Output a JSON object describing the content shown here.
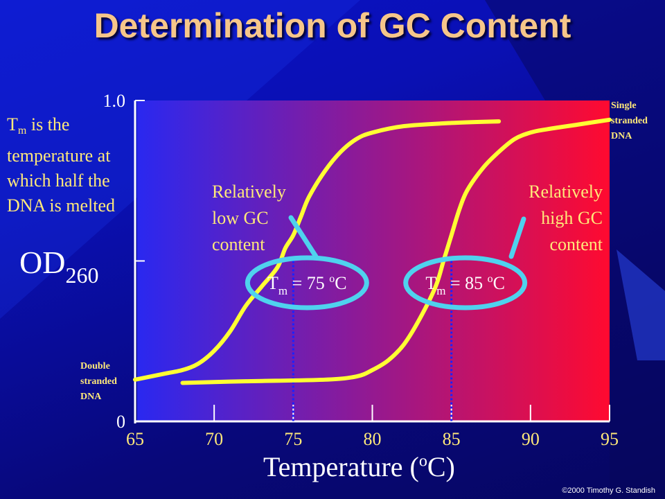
{
  "slide": {
    "title": "Determination of GC Content",
    "side_note": {
      "t": "T",
      "sub": "m",
      "rest": " is the temperature at which half the DNA is melted"
    },
    "double_label": [
      "Double",
      "stranded",
      "DNA"
    ],
    "single_label": [
      "Single",
      "stranded",
      "DNA"
    ],
    "copyright": "©2000 Timothy G. Standish"
  },
  "chart_data": {
    "type": "line",
    "xlabel": {
      "text": "Temperature (",
      "sup": "o",
      "end": "C)"
    },
    "ylabel": {
      "text": "OD",
      "sub": "260"
    },
    "xlim": [
      65,
      95
    ],
    "ylim": [
      0,
      1.0
    ],
    "x_ticks": [
      65,
      70,
      75,
      80,
      85,
      90,
      95
    ],
    "y_tick_labels": [
      {
        "value": 0,
        "label": "0"
      },
      {
        "value": 1.0,
        "label": "1.0"
      }
    ],
    "y_tick_marks": [
      0,
      0.5,
      1.0
    ],
    "background_gradient": [
      "#2a28f0",
      "#ff0a30"
    ],
    "series": [
      {
        "color": "#ffff33",
        "tm": 75,
        "points": [
          [
            65,
            0.13
          ],
          [
            66,
            0.14
          ],
          [
            67,
            0.15
          ],
          [
            68,
            0.16
          ],
          [
            69,
            0.18
          ],
          [
            70,
            0.22
          ],
          [
            71,
            0.28
          ],
          [
            72,
            0.36
          ],
          [
            73,
            0.42
          ],
          [
            74,
            0.48
          ],
          [
            74.5,
            0.54
          ],
          [
            75,
            0.58
          ],
          [
            75.5,
            0.64
          ],
          [
            76,
            0.7
          ],
          [
            77,
            0.78
          ],
          [
            78,
            0.84
          ],
          [
            79,
            0.88
          ],
          [
            80,
            0.9
          ],
          [
            82,
            0.92
          ],
          [
            85,
            0.93
          ],
          [
            88,
            0.935
          ]
        ]
      },
      {
        "color": "#ffff33",
        "tm": 85,
        "points": [
          [
            68,
            0.12
          ],
          [
            72,
            0.125
          ],
          [
            77,
            0.13
          ],
          [
            79,
            0.14
          ],
          [
            80,
            0.16
          ],
          [
            81,
            0.19
          ],
          [
            82,
            0.24
          ],
          [
            83,
            0.32
          ],
          [
            84,
            0.42
          ],
          [
            84.5,
            0.5
          ],
          [
            85,
            0.58
          ],
          [
            85.5,
            0.66
          ],
          [
            86,
            0.72
          ],
          [
            87,
            0.79
          ],
          [
            88,
            0.84
          ],
          [
            89,
            0.88
          ],
          [
            90,
            0.9
          ],
          [
            91,
            0.91
          ],
          [
            93,
            0.925
          ],
          [
            95,
            0.94
          ]
        ]
      }
    ],
    "annotations": [
      {
        "lines": [
          "Relatively",
          "low GC",
          "content"
        ],
        "align": "left",
        "tm_label": {
          "t": "T",
          "sub": "m",
          "rest": " = 75 ",
          "sup": "o",
          "end": "C"
        }
      },
      {
        "lines": [
          "Relatively",
          "high GC",
          "content"
        ],
        "align": "right",
        "tm_label": {
          "t": "T",
          "sub": "m",
          "rest": " = 85 ",
          "sup": "o",
          "end": "C"
        }
      }
    ],
    "ellipse_color": "#4fd2ee",
    "dash_color": "#1a22ff"
  }
}
